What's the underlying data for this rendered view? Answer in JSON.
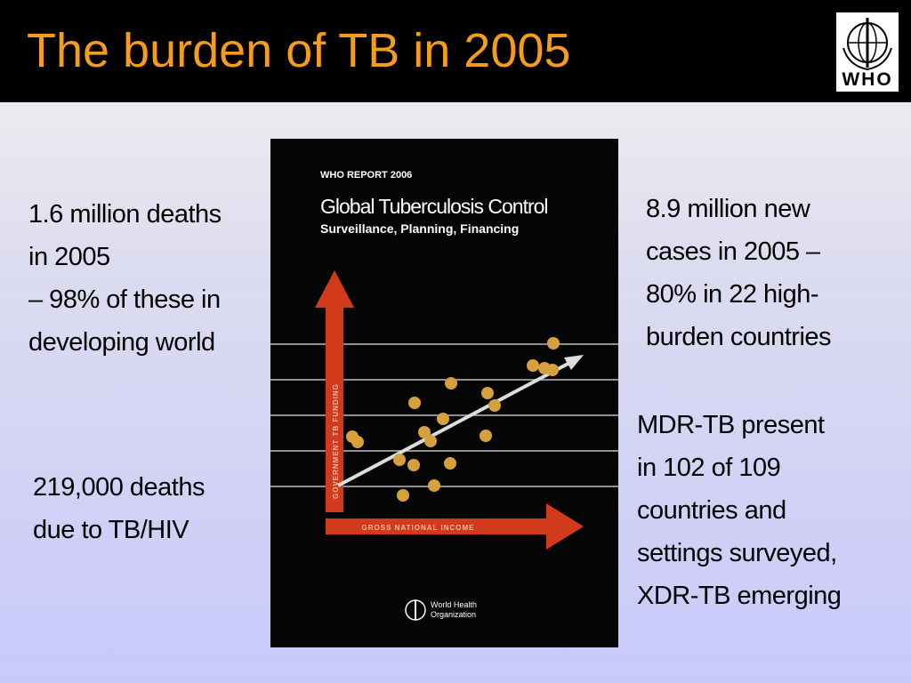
{
  "header": {
    "title": "The burden of TB in 2005",
    "logo": "WHO"
  },
  "left": [
    {
      "lines": [
        "1.6 million deaths",
        "in 2005",
        "– 98% of these in",
        "developing world"
      ]
    },
    {
      "lines": [
        "219,000 deaths",
        "due to TB/HIV"
      ]
    }
  ],
  "right": [
    {
      "lines": [
        "8.9 million new",
        "cases in 2005 –",
        "80% in 22 high-",
        "burden countries"
      ]
    },
    {
      "lines": [
        "MDR-TB present",
        "in 102 of 109",
        "countries and",
        "settings surveyed,",
        "XDR-TB emerging"
      ]
    }
  ],
  "cover": {
    "series": "WHO REPORT 2006",
    "title": "Global Tuberculosis Control",
    "subtitle": "Surveillance, Planning, Financing",
    "y_axis": "GOVERNMENT TB FUNDING",
    "x_axis": "GROSS NATIONAL INCOME",
    "publisher": [
      "World Health",
      "Organization"
    ]
  }
}
